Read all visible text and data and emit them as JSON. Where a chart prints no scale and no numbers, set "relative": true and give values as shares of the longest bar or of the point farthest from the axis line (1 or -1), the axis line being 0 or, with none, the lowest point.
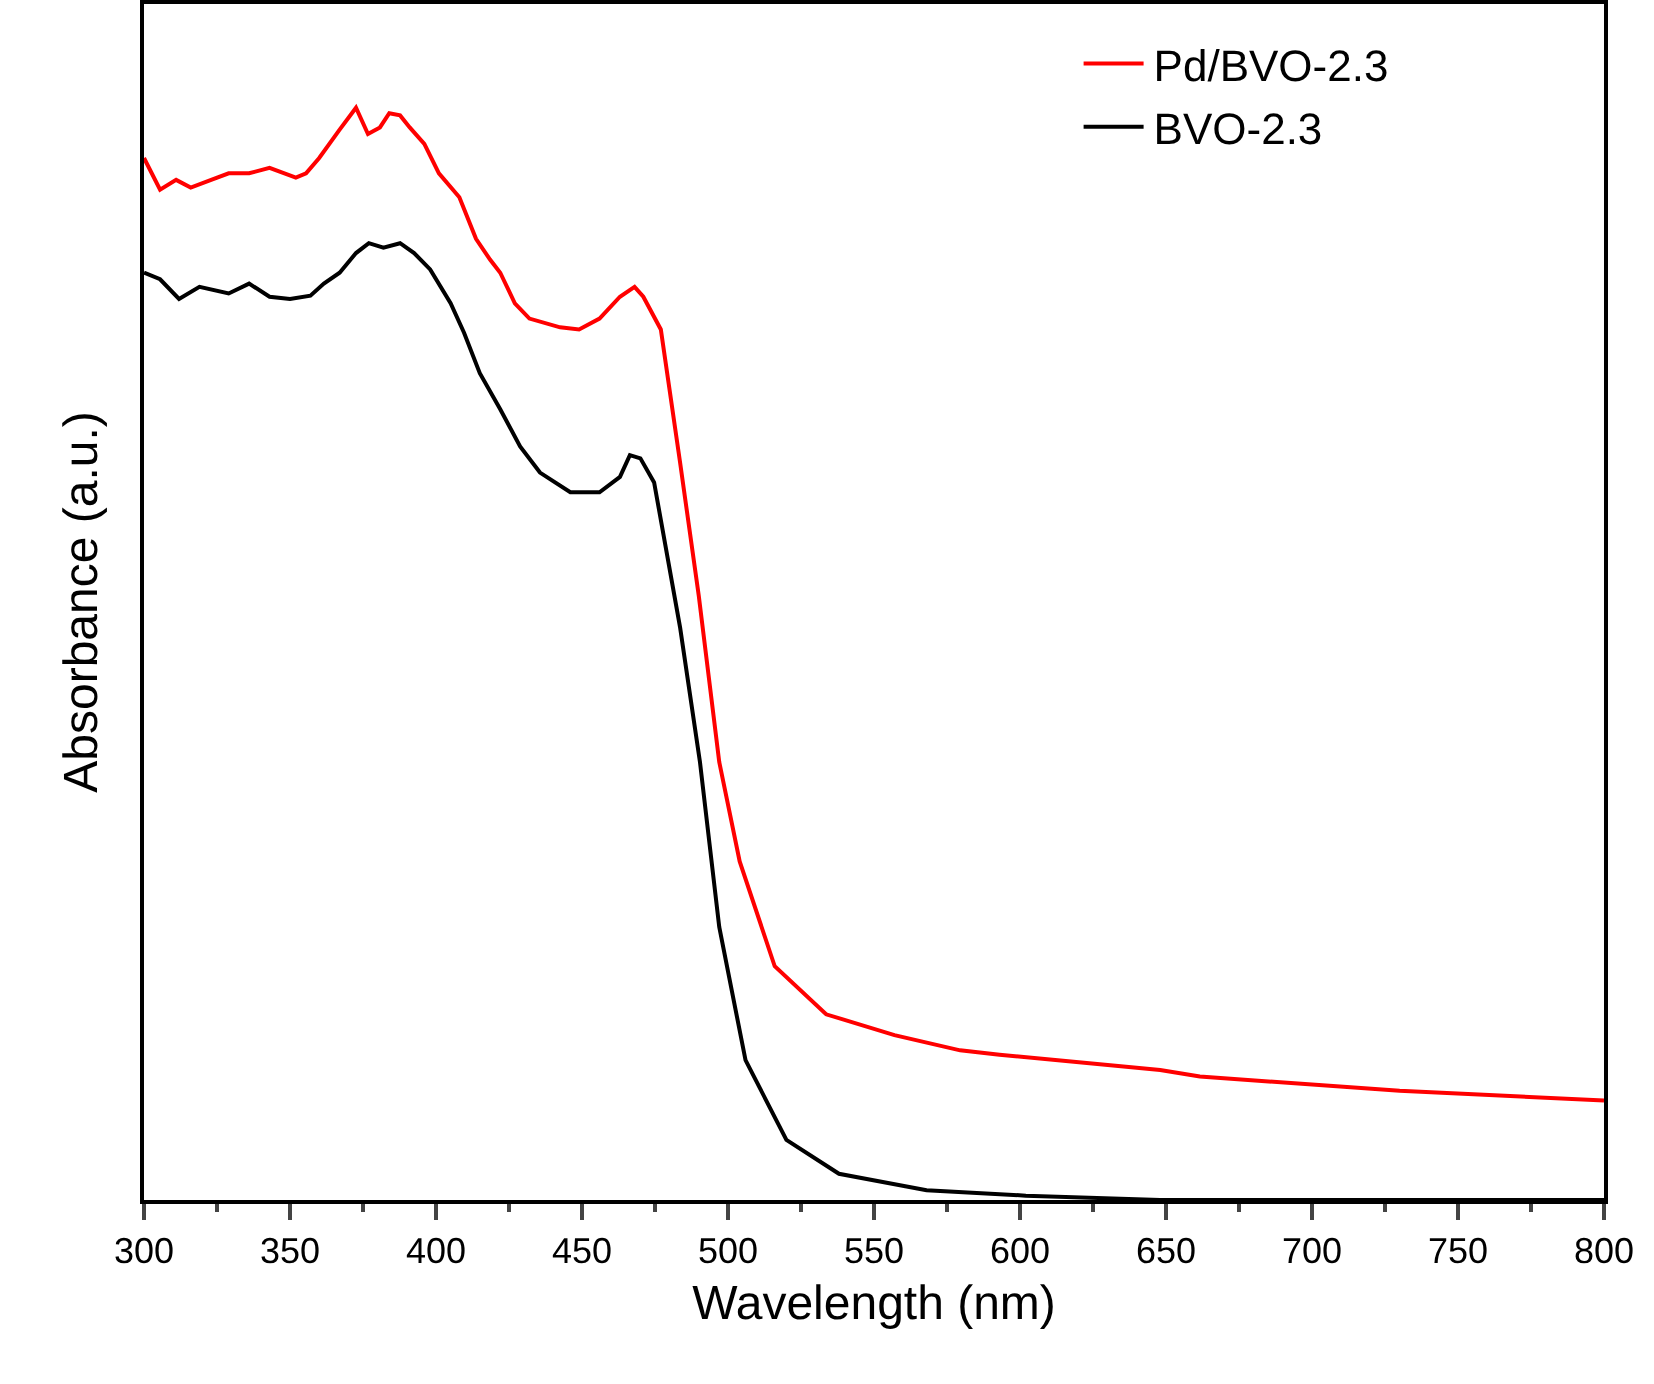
{
  "chart_data": {
    "type": "line",
    "xlabel": "Wavelength (nm)",
    "ylabel": "Absorbance (a.u.)",
    "relative": true,
    "xlim": [
      300,
      800
    ],
    "xticks": [
      300,
      350,
      400,
      450,
      500,
      550,
      600,
      650,
      700,
      750,
      800
    ],
    "legend": "top right",
    "grid": false,
    "marker": "none",
    "line_style": "solid",
    "series": [
      {
        "name": "Pd/BVO-2.3",
        "color": "#ff0000",
        "x": [
          300,
          305.5,
          311,
          316,
          323,
          329,
          336,
          343,
          352,
          355.5,
          360,
          367,
          372.6,
          376.7,
          380.8,
          384,
          387.7,
          391,
          396,
          401,
          408,
          413.7,
          418.5,
          422,
          427,
          432,
          442.5,
          449,
          456,
          463,
          468,
          471,
          477,
          483.6,
          490,
          497,
          504,
          516,
          533.6,
          557,
          579.5,
          593,
          648,
          661.6,
          730,
          800
        ],
        "values": [
          0.954,
          0.925,
          0.934,
          0.927,
          0.934,
          0.94,
          0.94,
          0.945,
          0.936,
          0.94,
          0.954,
          0.98,
          1.0,
          0.976,
          0.982,
          0.995,
          0.993,
          0.982,
          0.967,
          0.94,
          0.918,
          0.88,
          0.861,
          0.849,
          0.821,
          0.807,
          0.799,
          0.797,
          0.807,
          0.827,
          0.836,
          0.827,
          0.797,
          0.675,
          0.553,
          0.401,
          0.31,
          0.214,
          0.17,
          0.151,
          0.137,
          0.133,
          0.119,
          0.113,
          0.1,
          0.091
        ]
      },
      {
        "name": "BVO-2.3",
        "color": "#000000",
        "x": [
          300,
          305.5,
          312,
          319,
          329,
          336,
          343,
          350,
          357,
          361.6,
          367,
          372.6,
          377,
          382,
          387.7,
          392.5,
          398,
          405,
          409.6,
          415,
          422,
          428.8,
          435.6,
          446,
          456,
          463,
          466.4,
          470,
          474.7,
          483.6,
          490.4,
          497,
          506,
          520,
          538,
          568,
          602,
          648,
          800
        ],
        "values": [
          0.849,
          0.843,
          0.825,
          0.836,
          0.83,
          0.839,
          0.827,
          0.825,
          0.828,
          0.839,
          0.849,
          0.867,
          0.876,
          0.872,
          0.876,
          0.867,
          0.852,
          0.821,
          0.794,
          0.757,
          0.724,
          0.69,
          0.666,
          0.648,
          0.648,
          0.662,
          0.682,
          0.679,
          0.657,
          0.524,
          0.401,
          0.25,
          0.128,
          0.055,
          0.024,
          0.009,
          0.004,
          0,
          0
        ]
      }
    ]
  }
}
